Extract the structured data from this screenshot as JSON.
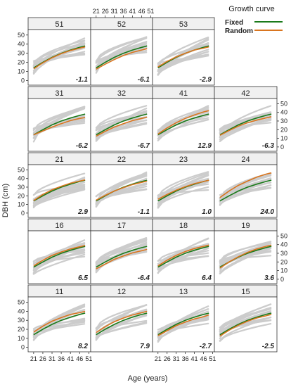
{
  "chart_data": {
    "type": "line",
    "title": "",
    "xlabel": "Age (years)",
    "ylabel": "DBH (cm)",
    "xlim": [
      18,
      52
    ],
    "ylim": [
      -5,
      56
    ],
    "x_ticks": [
      21,
      26,
      31,
      36,
      41,
      46,
      51
    ],
    "y_ticks": [
      0,
      10,
      20,
      30,
      40,
      50
    ],
    "legend": {
      "title": "Growth curve",
      "placement": "top-right",
      "entries": [
        {
          "label": "Fixed",
          "color": "#1a7a1a"
        },
        {
          "label": "Random",
          "color": "#d9751f"
        }
      ]
    },
    "colors": {
      "fixed": "#1a7a1a",
      "random": "#d9751f",
      "observed": "#cccccc",
      "strip": "#f0f0f0"
    },
    "curve_x": [
      21,
      26,
      31,
      36,
      41,
      46,
      49
    ],
    "panels": [
      {
        "id": "51",
        "value": "-1.1",
        "fixed": [
          14,
          20,
          25.5,
          30,
          33.5,
          36.5,
          38
        ],
        "random": [
          13,
          19.5,
          25,
          29.5,
          33,
          35.5,
          37
        ]
      },
      {
        "id": "52",
        "value": "-6.1",
        "fixed": [
          14,
          20,
          25.5,
          30,
          33.5,
          36.5,
          38
        ],
        "random": [
          12.5,
          18,
          23,
          27.5,
          31,
          33.5,
          35
        ]
      },
      {
        "id": "53",
        "value": "-2.9",
        "fixed": [
          14,
          20,
          25.5,
          30,
          33.5,
          36.5,
          38
        ],
        "random": [
          15,
          21,
          26,
          30,
          33.5,
          35.5,
          37
        ]
      },
      {
        "id": "31",
        "value": "-6.2",
        "fixed": [
          14,
          20,
          25.5,
          30,
          33.5,
          36.5,
          38
        ],
        "random": [
          14,
          18.5,
          23,
          27,
          30.5,
          33,
          34
        ]
      },
      {
        "id": "32",
        "value": "-6.7",
        "fixed": [
          14,
          20,
          25.5,
          30,
          33.5,
          36.5,
          38
        ],
        "random": [
          12.5,
          18,
          23,
          27,
          30.5,
          33,
          34.5
        ]
      },
      {
        "id": "41",
        "value": "12.9",
        "fixed": [
          14,
          20,
          25.5,
          30,
          33.5,
          36.5,
          38
        ],
        "random": [
          15,
          22,
          28,
          33,
          37,
          40.5,
          42
        ]
      },
      {
        "id": "42",
        "value": "-6.3",
        "fixed": [
          14,
          20,
          25.5,
          30,
          33.5,
          36.5,
          38
        ],
        "random": [
          13.5,
          19,
          24,
          28,
          31,
          33.5,
          35
        ]
      },
      {
        "id": "21",
        "value": "2.9",
        "fixed": [
          14,
          20,
          25.5,
          30,
          33.5,
          36.5,
          38
        ],
        "random": [
          14.5,
          21.5,
          27,
          31,
          34.5,
          37,
          38.5
        ]
      },
      {
        "id": "22",
        "value": "-1.1",
        "fixed": [
          14,
          20,
          25.5,
          30,
          33.5,
          36.5,
          38
        ],
        "random": [
          15,
          20.5,
          25.5,
          29.5,
          33,
          35.5,
          37
        ]
      },
      {
        "id": "23",
        "value": "1.0",
        "fixed": [
          14,
          20,
          25.5,
          30,
          33.5,
          36.5,
          38
        ],
        "random": [
          16,
          21.5,
          26.5,
          30.5,
          34,
          36.5,
          38
        ]
      },
      {
        "id": "24",
        "value": "24.0",
        "fixed": [
          14,
          20,
          25.5,
          30,
          33.5,
          36.5,
          38
        ],
        "random": [
          18,
          25.5,
          32,
          37,
          41.5,
          45,
          46.5
        ]
      },
      {
        "id": "16",
        "value": "6.5",
        "fixed": [
          14,
          20,
          25.5,
          30,
          33.5,
          36.5,
          38
        ],
        "random": [
          15.5,
          22,
          27.5,
          31.5,
          35,
          37.5,
          39
        ]
      },
      {
        "id": "17",
        "value": "-6.4",
        "fixed": [
          14,
          20,
          25.5,
          30,
          33.5,
          36.5,
          38
        ],
        "random": [
          12,
          17.5,
          23,
          27,
          30.5,
          33,
          34.5
        ]
      },
      {
        "id": "18",
        "value": "6.4",
        "fixed": [
          14,
          20,
          25.5,
          30,
          33.5,
          36.5,
          38
        ],
        "random": [
          15.5,
          22,
          27.5,
          32,
          35.5,
          38,
          39.5
        ]
      },
      {
        "id": "19",
        "value": "3.6",
        "fixed": [
          14,
          20,
          25.5,
          30,
          33.5,
          36.5,
          38
        ],
        "random": [
          13,
          20,
          26,
          31,
          35,
          38,
          39.5
        ]
      },
      {
        "id": "11",
        "value": "8.2",
        "fixed": [
          14,
          20,
          25.5,
          30,
          33.5,
          36.5,
          38
        ],
        "random": [
          17,
          23.5,
          29,
          33,
          36.5,
          38.5,
          40
        ]
      },
      {
        "id": "12",
        "value": "7.9",
        "fixed": [
          14,
          20,
          25.5,
          30,
          33.5,
          36.5,
          38
        ],
        "random": [
          16.5,
          23,
          28.5,
          32.5,
          36,
          38.5,
          40
        ]
      },
      {
        "id": "13",
        "value": "-2.7",
        "fixed": [
          14,
          20,
          25.5,
          30,
          33.5,
          36.5,
          38
        ],
        "random": [
          13,
          18.5,
          24,
          28,
          31.5,
          34,
          36
        ]
      },
      {
        "id": "15",
        "value": "-2.5",
        "fixed": [
          14,
          20,
          25.5,
          30,
          33.5,
          36.5,
          38
        ],
        "random": [
          12.5,
          19,
          24.5,
          29,
          32.5,
          35,
          36.5
        ]
      }
    ]
  }
}
